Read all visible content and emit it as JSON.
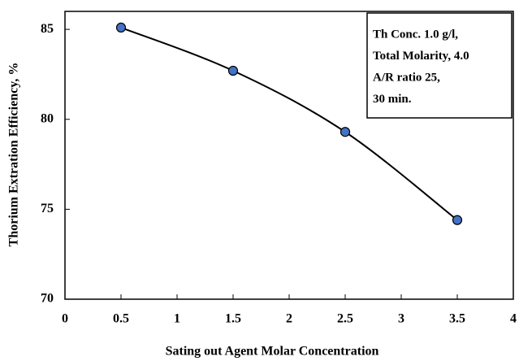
{
  "chart_data": {
    "type": "line",
    "x_label": "Sating out Agent Molar Concentration",
    "y_label": "Thorium  Extration Efficiency, %",
    "x": [
      0.5,
      1.5,
      2.5,
      3.5
    ],
    "values": [
      85.1,
      82.7,
      79.3,
      74.4
    ],
    "color": "#4472c4",
    "xlim": [
      0,
      4
    ],
    "xticks": [
      0,
      0.5,
      1,
      1.5,
      2,
      2.5,
      3,
      3.5,
      4
    ],
    "ylim": [
      70,
      86
    ],
    "yticks": [
      70,
      75,
      80,
      85
    ],
    "annotation": [
      "Th Conc. 1.0 g/l,",
      "Total Molarity, 4.0",
      "A/R ratio 25,",
      "30 min."
    ]
  }
}
